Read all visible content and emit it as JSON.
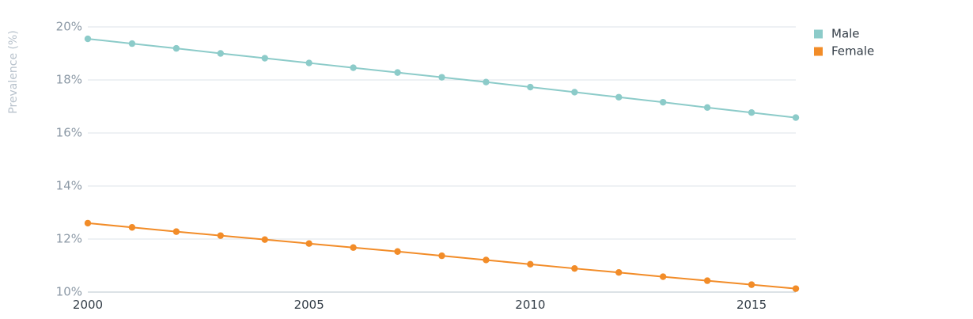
{
  "chart_data": {
    "type": "line",
    "ylabel": "Prevalence (%)",
    "x": [
      2000,
      2001,
      2002,
      2003,
      2004,
      2005,
      2006,
      2007,
      2008,
      2009,
      2010,
      2011,
      2012,
      2013,
      2014,
      2015,
      2016
    ],
    "xlim": [
      2000,
      2016
    ],
    "xticks": [
      2000,
      2005,
      2010,
      2015
    ],
    "xtick_labels": [
      "2000",
      "2005",
      "2010",
      "2015"
    ],
    "ylim": [
      10,
      20
    ],
    "yticks": [
      10,
      12,
      14,
      16,
      18,
      20
    ],
    "ytick_labels": [
      "10%",
      "12%",
      "14%",
      "16%",
      "18%",
      "20%"
    ],
    "grid": true,
    "legend_position": "top-right",
    "series": [
      {
        "name": "Male",
        "color": "#8ccbc9",
        "values": [
          19.55,
          19.37,
          19.19,
          19.0,
          18.82,
          18.64,
          18.46,
          18.28,
          18.1,
          17.92,
          17.73,
          17.54,
          17.35,
          17.16,
          16.96,
          16.77,
          16.58
        ]
      },
      {
        "name": "Female",
        "color": "#f28c28",
        "values": [
          12.6,
          12.44,
          12.28,
          12.13,
          11.98,
          11.83,
          11.68,
          11.53,
          11.37,
          11.21,
          11.05,
          10.89,
          10.74,
          10.58,
          10.43,
          10.28,
          10.13
        ]
      }
    ]
  }
}
